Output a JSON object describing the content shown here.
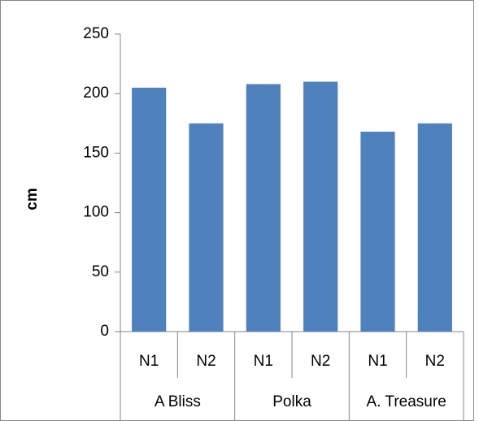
{
  "chart_data": {
    "type": "bar",
    "y_label": "cm",
    "color": "#4f81bd",
    "groups": [
      {
        "name": "A Bliss",
        "categories": [
          "N1",
          "N2"
        ],
        "values": [
          205,
          175
        ]
      },
      {
        "name": "Polka",
        "categories": [
          "N1",
          "N2"
        ],
        "values": [
          208,
          210
        ]
      },
      {
        "name": "A. Treasure",
        "categories": [
          "N1",
          "N2"
        ],
        "values": [
          168,
          175
        ]
      }
    ],
    "ylim": [
      0,
      250
    ],
    "yticks": [
      0,
      50,
      100,
      150,
      200,
      250
    ],
    "grid": false
  }
}
